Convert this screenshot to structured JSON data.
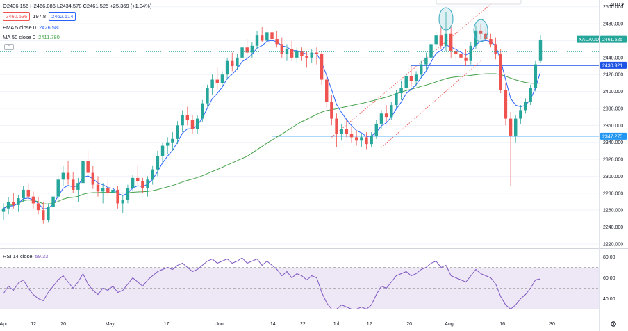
{
  "header": {
    "ohlc": "O2436.156 H2466.086 L2434.578 C2461.525 +25.369 (+1.04%)",
    "bid": "2460.536",
    "spread": "197.8",
    "ask": "2462.514",
    "ema_label": "EMA 5 close 0",
    "ema_value": "2426.580",
    "ma_label": "MA 50 close 0",
    "ma_value": "2411.780",
    "collapse_icon": "^",
    "currency": "AUD"
  },
  "rsi": {
    "label": "RSI 14 close",
    "value": "59.33",
    "ticks": [
      "80.00",
      "60.00",
      "40.00"
    ],
    "ylim": [
      25,
      83
    ]
  },
  "price_axis": {
    "ticks": [
      "2500.000",
      "2480.000",
      "2460.000",
      "2440.000",
      "2420.000",
      "2400.000",
      "2380.000",
      "2360.000",
      "2340.000",
      "2320.000",
      "2300.000",
      "2280.000",
      "2260.000",
      "2240.000",
      "2220.000"
    ],
    "symbol_tag": "XAUAUD",
    "last_price_tag": "2461.525",
    "resistance_tag": "2430.921",
    "support_tag": "2347.275"
  },
  "time_axis": {
    "labels": [
      "Apr",
      "12",
      "20",
      "May",
      "17",
      "Jun",
      "14",
      "22",
      "Jul",
      "12",
      "20",
      "Aug",
      "16",
      "30"
    ]
  },
  "colors": {
    "up": "#26a69a",
    "down": "#ef5350",
    "ema": "#2962ff",
    "ma": "#43a047",
    "channel": "#ef5350",
    "rsi_line": "#7e57c2",
    "rsi_band": "#ede7f6",
    "hline": "#2196f3",
    "circle": "#4fb3c6"
  },
  "chart_data": {
    "type": "candlestick",
    "symbol": "XAUAUD",
    "ylim": [
      2215,
      2508
    ],
    "candles": [
      [
        2258,
        2268,
        2248,
        2262
      ],
      [
        2262,
        2275,
        2255,
        2270
      ],
      [
        2270,
        2280,
        2262,
        2266
      ],
      [
        2266,
        2278,
        2258,
        2274
      ],
      [
        2274,
        2288,
        2270,
        2284
      ],
      [
        2284,
        2292,
        2272,
        2276
      ],
      [
        2276,
        2282,
        2262,
        2268
      ],
      [
        2268,
        2275,
        2255,
        2260
      ],
      [
        2260,
        2270,
        2244,
        2248
      ],
      [
        2248,
        2268,
        2246,
        2264
      ],
      [
        2264,
        2280,
        2260,
        2276
      ],
      [
        2276,
        2300,
        2272,
        2296
      ],
      [
        2296,
        2312,
        2288,
        2304
      ],
      [
        2304,
        2318,
        2290,
        2296
      ],
      [
        2296,
        2305,
        2280,
        2284
      ],
      [
        2284,
        2298,
        2270,
        2292
      ],
      [
        2292,
        2325,
        2288,
        2318
      ],
      [
        2318,
        2330,
        2300,
        2304
      ],
      [
        2304,
        2312,
        2285,
        2290
      ],
      [
        2290,
        2300,
        2276,
        2282
      ],
      [
        2282,
        2292,
        2268,
        2286
      ],
      [
        2286,
        2296,
        2276,
        2280
      ],
      [
        2280,
        2290,
        2270,
        2284
      ],
      [
        2284,
        2288,
        2262,
        2268
      ],
      [
        2268,
        2278,
        2256,
        2272
      ],
      [
        2272,
        2290,
        2268,
        2286
      ],
      [
        2286,
        2302,
        2282,
        2298
      ],
      [
        2298,
        2312,
        2290,
        2294
      ],
      [
        2294,
        2298,
        2280,
        2286
      ],
      [
        2286,
        2300,
        2276,
        2296
      ],
      [
        2296,
        2312,
        2290,
        2308
      ],
      [
        2308,
        2330,
        2300,
        2324
      ],
      [
        2324,
        2340,
        2316,
        2336
      ],
      [
        2336,
        2346,
        2326,
        2340
      ],
      [
        2340,
        2352,
        2330,
        2344
      ],
      [
        2344,
        2365,
        2338,
        2360
      ],
      [
        2360,
        2378,
        2352,
        2372
      ],
      [
        2372,
        2382,
        2360,
        2366
      ],
      [
        2366,
        2372,
        2350,
        2356
      ],
      [
        2356,
        2372,
        2350,
        2368
      ],
      [
        2368,
        2390,
        2364,
        2386
      ],
      [
        2386,
        2408,
        2382,
        2404
      ],
      [
        2404,
        2420,
        2396,
        2414
      ],
      [
        2414,
        2428,
        2402,
        2410
      ],
      [
        2410,
        2424,
        2406,
        2420
      ],
      [
        2420,
        2440,
        2414,
        2436
      ],
      [
        2436,
        2446,
        2424,
        2430
      ],
      [
        2430,
        2444,
        2426,
        2440
      ],
      [
        2440,
        2456,
        2436,
        2452
      ],
      [
        2452,
        2462,
        2442,
        2446
      ],
      [
        2446,
        2458,
        2440,
        2454
      ],
      [
        2454,
        2472,
        2450,
        2466
      ],
      [
        2466,
        2476,
        2458,
        2460
      ],
      [
        2460,
        2474,
        2454,
        2470
      ],
      [
        2470,
        2478,
        2456,
        2462
      ],
      [
        2462,
        2472,
        2452,
        2456
      ],
      [
        2456,
        2464,
        2440,
        2444
      ],
      [
        2444,
        2456,
        2436,
        2450
      ],
      [
        2450,
        2460,
        2436,
        2440
      ],
      [
        2440,
        2452,
        2434,
        2448
      ],
      [
        2448,
        2452,
        2436,
        2442
      ],
      [
        2442,
        2448,
        2428,
        2440
      ],
      [
        2440,
        2450,
        2434,
        2446
      ],
      [
        2446,
        2452,
        2432,
        2444
      ],
      [
        2444,
        2448,
        2408,
        2414
      ],
      [
        2414,
        2420,
        2380,
        2388
      ],
      [
        2388,
        2396,
        2360,
        2368
      ],
      [
        2368,
        2374,
        2334,
        2350
      ],
      [
        2350,
        2362,
        2342,
        2356
      ],
      [
        2356,
        2366,
        2346,
        2350
      ],
      [
        2350,
        2358,
        2340,
        2346
      ],
      [
        2346,
        2354,
        2336,
        2342
      ],
      [
        2342,
        2350,
        2334,
        2346
      ],
      [
        2346,
        2352,
        2332,
        2338
      ],
      [
        2338,
        2352,
        2334,
        2348
      ],
      [
        2348,
        2366,
        2344,
        2362
      ],
      [
        2362,
        2378,
        2356,
        2374
      ],
      [
        2374,
        2384,
        2364,
        2370
      ],
      [
        2370,
        2388,
        2366,
        2384
      ],
      [
        2384,
        2402,
        2380,
        2398
      ],
      [
        2398,
        2412,
        2390,
        2404
      ],
      [
        2404,
        2422,
        2400,
        2418
      ],
      [
        2418,
        2430,
        2406,
        2412
      ],
      [
        2412,
        2424,
        2406,
        2420
      ],
      [
        2420,
        2436,
        2416,
        2432
      ],
      [
        2432,
        2446,
        2426,
        2440
      ],
      [
        2440,
        2462,
        2436,
        2456
      ],
      [
        2456,
        2470,
        2448,
        2466
      ],
      [
        2466,
        2476,
        2450,
        2454
      ],
      [
        2454,
        2494,
        2448,
        2468
      ],
      [
        2468,
        2478,
        2440,
        2448
      ],
      [
        2448,
        2456,
        2436,
        2444
      ],
      [
        2444,
        2452,
        2432,
        2440
      ],
      [
        2440,
        2450,
        2430,
        2436
      ],
      [
        2436,
        2458,
        2432,
        2454
      ],
      [
        2454,
        2478,
        2450,
        2472
      ],
      [
        2472,
        2480,
        2462,
        2468
      ],
      [
        2468,
        2476,
        2460,
        2462
      ],
      [
        2462,
        2468,
        2452,
        2456
      ],
      [
        2456,
        2464,
        2438,
        2444
      ],
      [
        2444,
        2450,
        2398,
        2402
      ],
      [
        2402,
        2410,
        2360,
        2368
      ],
      [
        2368,
        2376,
        2288,
        2348
      ],
      [
        2348,
        2372,
        2340,
        2368
      ],
      [
        2368,
        2384,
        2362,
        2378
      ],
      [
        2378,
        2392,
        2374,
        2388
      ],
      [
        2388,
        2408,
        2384,
        2404
      ],
      [
        2404,
        2436,
        2400,
        2432
      ],
      [
        2436,
        2466,
        2434,
        2461
      ]
    ],
    "ema5_label": "EMA 5 close 0",
    "ma50_label": "MA 50 close 0",
    "resistance": 2430.921,
    "support": 2347.275,
    "channel": {
      "lower": [
        [
          76,
          2334
        ],
        [
          96,
          2436
        ]
      ],
      "upper": [
        [
          66,
          2346
        ],
        [
          99,
          2508
        ]
      ]
    },
    "double_top_candles": [
      89,
      96
    ],
    "rsi": [
      45,
      52,
      48,
      55,
      58,
      50,
      44,
      40,
      38,
      46,
      52,
      58,
      62,
      56,
      50,
      56,
      64,
      54,
      48,
      44,
      50,
      48,
      52,
      46,
      48,
      54,
      60,
      56,
      52,
      58,
      62,
      66,
      68,
      70,
      68,
      72,
      74,
      70,
      66,
      68,
      72,
      76,
      78,
      74,
      76,
      78,
      74,
      76,
      79,
      74,
      76,
      78,
      72,
      76,
      72,
      68,
      62,
      66,
      60,
      64,
      62,
      58,
      62,
      60,
      46,
      36,
      30,
      30,
      34,
      32,
      30,
      30,
      32,
      30,
      34,
      44,
      52,
      50,
      56,
      62,
      64,
      66,
      62,
      64,
      68,
      70,
      74,
      76,
      70,
      72,
      62,
      60,
      58,
      56,
      62,
      68,
      64,
      62,
      60,
      54,
      42,
      34,
      30,
      34,
      40,
      44,
      50,
      58,
      59
    ]
  }
}
